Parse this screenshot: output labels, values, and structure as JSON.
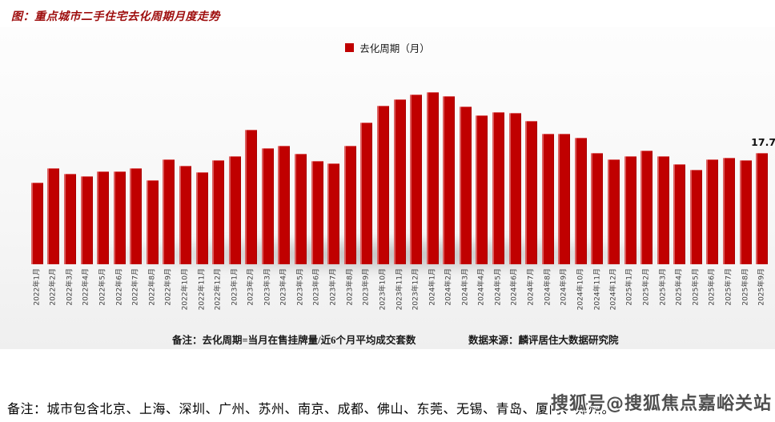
{
  "page": {
    "title": "图：重点城市二手住宅去化周期月度走势",
    "bottom_note": "备注：城市包含北京、上海、深圳、广州、苏州、南京、成都、佛山、东莞、无锡、青岛、厦门、郑州。",
    "watermark": "搜狐号@搜狐焦点嘉峪关站"
  },
  "legend": {
    "label": "去化周期（月）"
  },
  "footnotes": {
    "formula": "备注：去化周期=当月在售挂牌量/近6个月平均成交套数",
    "source": "数据来源：麟评居住大数据研究院"
  },
  "chart_data": {
    "type": "bar",
    "title": "重点城市二手住宅去化周期月度走势",
    "legend_entries": [
      "去化周期（月）"
    ],
    "bar_color": "#c00000",
    "xlabel": "",
    "ylabel": "去化周期（月）",
    "ylim": [
      0,
      32
    ],
    "grid": false,
    "legend_position": "top-center",
    "x_tick_rotation": 90,
    "last_value_label": "17.7",
    "categories": [
      "2022年1月",
      "2022年2月",
      "2022年3月",
      "2022年4月",
      "2022年5月",
      "2022年6月",
      "2022年7月",
      "2022年8月",
      "2022年9月",
      "2022年10月",
      "2022年11月",
      "2022年12月",
      "2023年1月",
      "2023年2月",
      "2023年3月",
      "2023年4月",
      "2023年5月",
      "2023年6月",
      "2023年7月",
      "2023年8月",
      "2023年9月",
      "2023年10月",
      "2023年11月",
      "2023年12月",
      "2024年1月",
      "2024年2月",
      "2024年3月",
      "2024年4月",
      "2024年5月",
      "2024年6月",
      "2024年7月",
      "2024年8月",
      "2024年9月",
      "2024年10月",
      "2024年11月",
      "2024年12月",
      "2025年1月",
      "2025年2月",
      "2025年3月",
      "2025年4月",
      "2025年5月",
      "2025年6月",
      "2025年7月",
      "2025年8月",
      "2025年9月"
    ],
    "values": [
      13.0,
      15.2,
      14.4,
      14.0,
      14.7,
      14.8,
      15.3,
      13.3,
      16.6,
      15.6,
      14.6,
      16.5,
      17.2,
      21.3,
      18.4,
      18.8,
      17.5,
      16.4,
      16.0,
      18.8,
      22.5,
      25.2,
      26.2,
      27.0,
      27.3,
      26.7,
      25.0,
      23.6,
      24.1,
      24.0,
      22.8,
      20.7,
      20.7,
      20.1,
      17.7,
      16.6,
      17.2,
      18.1,
      17.1,
      15.9,
      15.0,
      16.6,
      16.9,
      16.5,
      17.7
    ]
  }
}
